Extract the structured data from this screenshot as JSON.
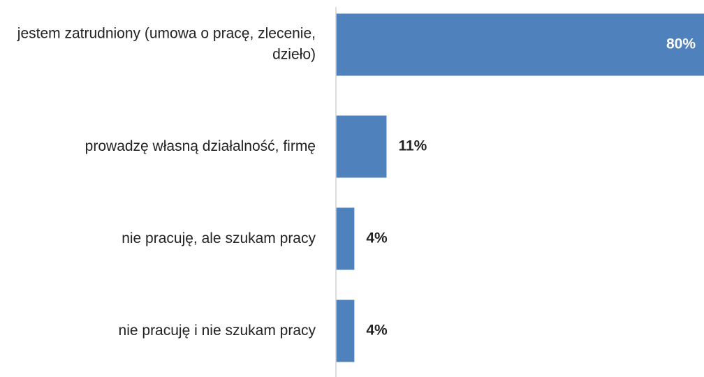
{
  "chart_data": {
    "type": "bar",
    "orientation": "horizontal",
    "categories": [
      "jestem zatrudniony (umowa o pracę, zlecenie, dzieło)",
      "prowadzę własną działalność, firmę",
      "nie pracuję, ale szukam pracy",
      "nie pracuję i nie szukam pracy"
    ],
    "values": [
      80,
      11,
      4,
      4
    ],
    "value_labels": [
      "80%",
      "11%",
      "4%",
      "4%"
    ],
    "color": "#4f81bd",
    "xlim": [
      0,
      80
    ]
  }
}
